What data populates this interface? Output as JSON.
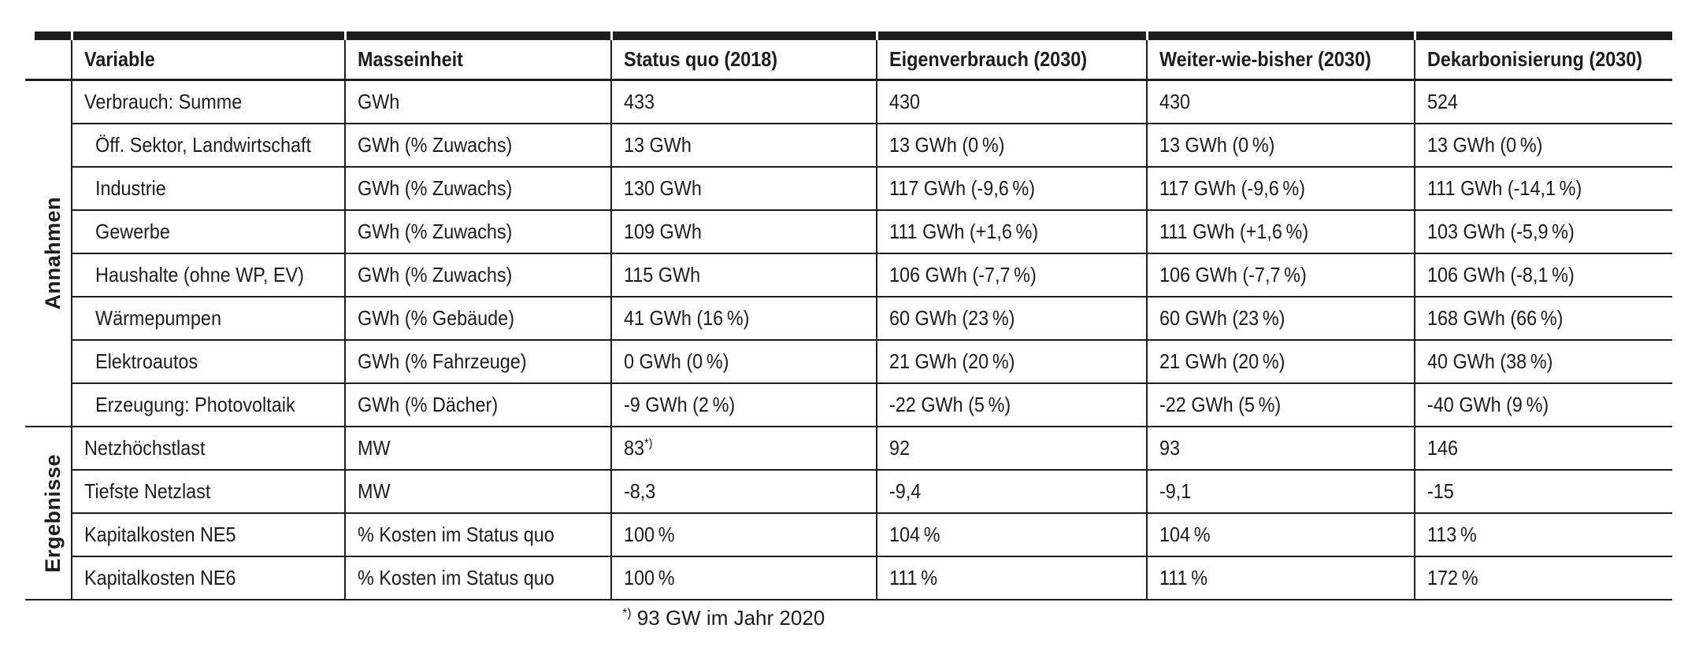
{
  "table": {
    "columns": [
      "Variable",
      "Masseinheit",
      "Status quo (2018)",
      "Eigenverbrauch (2030)",
      "Weiter-wie-bisher (2030)",
      "Dekarbonisierung (2030)"
    ],
    "groups": [
      {
        "label": "Annahmen",
        "rows": [
          {
            "variable": "Verbrauch: Summe",
            "indent": false,
            "unit": "GWh",
            "values": [
              "433",
              "430",
              "430",
              "524"
            ]
          },
          {
            "variable": "Öff. Sektor, Landwirtschaft",
            "indent": true,
            "unit": "GWh (% Zuwachs)",
            "values": [
              "13 GWh",
              "13 GWh (0 %)",
              "13 GWh (0 %)",
              "13 GWh (0 %)"
            ]
          },
          {
            "variable": "Industrie",
            "indent": true,
            "unit": "GWh (% Zuwachs)",
            "values": [
              "130 GWh",
              "117 GWh (-9,6 %)",
              "117 GWh (-9,6 %)",
              "111 GWh (-14,1 %)"
            ]
          },
          {
            "variable": "Gewerbe",
            "indent": true,
            "unit": "GWh (% Zuwachs)",
            "values": [
              "109 GWh",
              "111 GWh (+1,6 %)",
              "111 GWh (+1,6 %)",
              "103 GWh (-5,9 %)"
            ]
          },
          {
            "variable": "Haushalte (ohne WP, EV)",
            "indent": true,
            "unit": "GWh (% Zuwachs)",
            "values": [
              "115 GWh",
              "106 GWh (-7,7 %)",
              "106 GWh (-7,7 %)",
              "106 GWh (-8,1 %)"
            ]
          },
          {
            "variable": "Wärmepumpen",
            "indent": true,
            "unit": "GWh (% Gebäude)",
            "values": [
              "41 GWh (16 %)",
              "60 GWh (23 %)",
              "60 GWh (23 %)",
              "168 GWh (66 %)"
            ]
          },
          {
            "variable": "Elektroautos",
            "indent": true,
            "unit": "GWh (% Fahrzeuge)",
            "values": [
              "0 GWh (0 %)",
              "21 GWh (20 %)",
              "21 GWh (20 %)",
              "40 GWh (38 %)"
            ]
          },
          {
            "variable": "Erzeugung: Photovoltaik",
            "indent": true,
            "unit": "GWh (% Dächer)",
            "values": [
              "-9 GWh (2 %)",
              "-22 GWh (5 %)",
              "-22 GWh (5 %)",
              "-40 GWh (9 %)"
            ]
          }
        ]
      },
      {
        "label": "Ergebnisse",
        "rows": [
          {
            "variable": "Netzhöchstlast",
            "indent": false,
            "unit": "MW",
            "values": [
              "83",
              "92",
              "93",
              "146"
            ],
            "footnote_ref": {
              "col": 0,
              "marker": "*)"
            }
          },
          {
            "variable": "Tiefste Netzlast",
            "indent": false,
            "unit": "MW",
            "values": [
              "-8,3",
              "-9,4",
              "-9,1",
              "-15"
            ]
          },
          {
            "variable": "Kapitalkosten NE5",
            "indent": false,
            "unit": "% Kosten im Status quo",
            "values": [
              "100 %",
              "104 %",
              "104 %",
              "113 %"
            ]
          },
          {
            "variable": "Kapitalkosten NE6",
            "indent": false,
            "unit": "% Kosten im Status quo",
            "values": [
              "100 %",
              "111 %",
              "111 %",
              "172 %"
            ]
          }
        ]
      }
    ],
    "footnote_marker": "*)",
    "footnote": "93 GW im Jahr 2020"
  }
}
